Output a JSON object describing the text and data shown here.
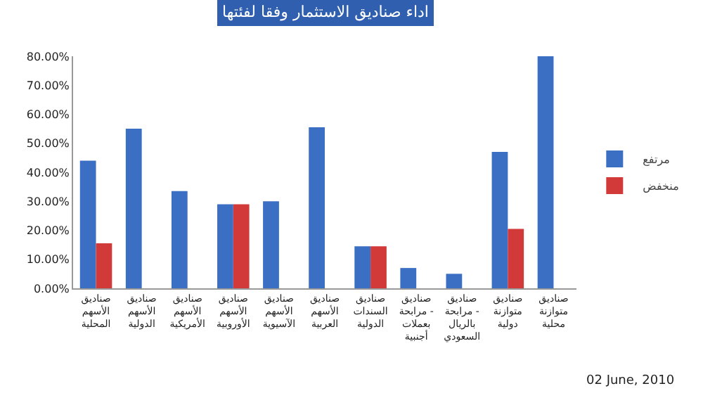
{
  "chart_data": {
    "type": "bar",
    "title": "اداء صناديق الاستثمار وفقا لفئتها",
    "categories": [
      "صناديق\nالأسهم\nالمحلية",
      "صناديق\nالأسهم\nالدولية",
      "صناديق\nالأسهم\nالأمريكية",
      "صناديق\nالأسهم\nالأوروبية",
      "صناديق\nالأسهم\nالآسيوية",
      "صناديق\nالأسهم\nالعربية",
      "صناديق\nالسندات\nالدولية",
      "صناديق\nمرابحة -\nبعملات\nأجنبية",
      "صناديق\nمرابحة -\nبالريال\nالسعودي",
      "صناديق\nمتوازنة\nدولية",
      "صناديق\nمتوازنة\nمحلية"
    ],
    "series": [
      {
        "name": "مرتفع",
        "color": "#3a6fc4",
        "values": [
          44,
          55,
          33.5,
          29,
          30,
          55.5,
          14.5,
          7,
          5,
          47,
          80
        ]
      },
      {
        "name": "منخفض",
        "color": "#d23a3a",
        "values": [
          15.5,
          0,
          0,
          29,
          0,
          0,
          14.5,
          0,
          0,
          20.5,
          0
        ]
      }
    ],
    "ylim": [
      0,
      80
    ],
    "yticks": [
      {
        "value": 0,
        "label": "0.00%"
      },
      {
        "value": 10,
        "label": "10.00%"
      },
      {
        "value": 20,
        "label": "20.00%"
      },
      {
        "value": 30,
        "label": "30.00%"
      },
      {
        "value": 40,
        "label": "40.00%"
      },
      {
        "value": 50,
        "label": "50.00%"
      },
      {
        "value": 60,
        "label": "60.00%"
      },
      {
        "value": 70,
        "label": "70.00%"
      },
      {
        "value": 80,
        "label": "80.00%"
      }
    ],
    "legend": "right",
    "annotations": [
      "02 June, 2010"
    ]
  }
}
